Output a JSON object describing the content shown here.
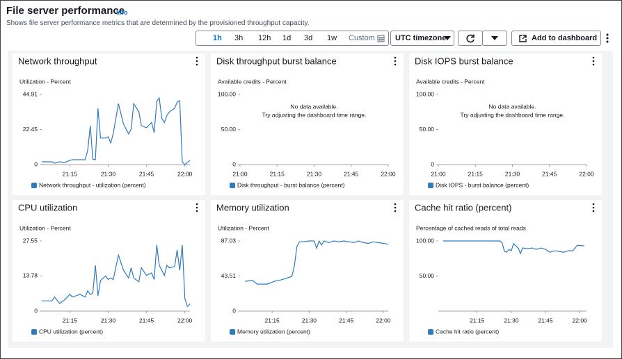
{
  "header": {
    "title": "File server performance",
    "info": "Info",
    "description": "Shows file server performance metrics that are determined by the provisioned throughput capacity."
  },
  "toolbar": {
    "ranges": [
      "1h",
      "3h",
      "12h",
      "1d",
      "3d",
      "1w"
    ],
    "custom": "Custom",
    "timezone": "UTC timezone",
    "add": "Add to dashboard"
  },
  "chart_data": [
    {
      "type": "line",
      "title": "Network throughput",
      "axis_label": "Utilization - Percent",
      "x": [
        "21:04",
        "21:08",
        "21:09",
        "21:11",
        "21:13",
        "21:15",
        "21:16",
        "21:19",
        "21:21",
        "21:22",
        "21:23",
        "21:24",
        "21:25",
        "21:26",
        "21:27",
        "21:29",
        "21:30",
        "21:31",
        "21:32",
        "21:34",
        "21:36",
        "21:38",
        "21:39",
        "21:40",
        "21:42",
        "21:43",
        "21:45",
        "21:47",
        "21:48",
        "21:49",
        "21:50",
        "21:51",
        "21:52",
        "21:53",
        "21:54",
        "21:56",
        "21:57",
        "21:58",
        "21:59",
        "22:00",
        "22:01",
        "22:02"
      ],
      "series": [
        {
          "name": "Network throughput - utilization (percent)",
          "color": "#2f7bbf",
          "values": [
            1.8,
            1.8,
            0.9,
            1.8,
            1.3,
            2.7,
            3.1,
            3.1,
            3.1,
            9.3,
            24.9,
            3.5,
            3.1,
            36,
            17,
            17,
            17.8,
            13.8,
            20,
            39,
            26,
            19.6,
            22.7,
            39,
            33.8,
            24.9,
            23.6,
            27,
            20.5,
            40.5,
            42.6,
            29.4,
            27,
            31.5,
            33.8,
            36,
            40,
            40.9,
            1.8,
            0,
            1.3,
            2.7
          ]
        }
      ],
      "xlim": [
        "21:04",
        "22:02"
      ],
      "xticks": [
        "21:15",
        "21:30",
        "21:45",
        "22:00"
      ],
      "ylim": [
        0,
        44.91
      ],
      "yticks": [
        0,
        22.45,
        44.91
      ]
    },
    {
      "type": "line",
      "title": "Disk throughput burst balance",
      "axis_label": "Available credits - Percent",
      "message": [
        "No data available.",
        "Try adjusting the dashboard time range."
      ],
      "x": [],
      "series": [
        {
          "name": "Disk throughput - burst balance (percent)",
          "color": "#2f7bbf",
          "values": []
        }
      ],
      "xlim": [
        "21:00",
        "22:00"
      ],
      "xticks": [
        "21:00",
        "21:15",
        "21:30",
        "21:45",
        "22:00"
      ],
      "ylim": [
        0,
        100
      ],
      "yticks": [
        0,
        {
          "value": 50,
          "label": "50.00"
        },
        {
          "value": 100,
          "label": "100.00"
        }
      ]
    },
    {
      "type": "line",
      "title": "Disk IOPS burst balance",
      "axis_label": "Available credits - Percent",
      "message": [
        "No data available.",
        "Try adjusting the dashboard time range."
      ],
      "x": [],
      "series": [
        {
          "name": "Disk IOPS - burst balance (percent)",
          "color": "#2f7bbf",
          "values": []
        }
      ],
      "xlim": [
        "21:00",
        "22:00"
      ],
      "xticks": [
        "21:00",
        "21:15",
        "21:30",
        "21:45",
        "22:00"
      ],
      "ylim": [
        0,
        100
      ],
      "yticks": [
        0,
        {
          "value": 50,
          "label": "50.00"
        },
        {
          "value": 100,
          "label": "100.00"
        }
      ]
    },
    {
      "type": "line",
      "title": "CPU utilization",
      "axis_label": "Utilization - Percent",
      "x": [
        "21:04",
        "21:08",
        "21:09",
        "21:11",
        "21:13",
        "21:15",
        "21:16",
        "21:19",
        "21:21",
        "21:22",
        "21:23",
        "21:24",
        "21:25",
        "21:26",
        "21:27",
        "21:29",
        "21:30",
        "21:31",
        "21:32",
        "21:34",
        "21:36",
        "21:38",
        "21:39",
        "21:40",
        "21:42",
        "21:43",
        "21:45",
        "21:47",
        "21:48",
        "21:49",
        "21:50",
        "21:51",
        "21:52",
        "21:53",
        "21:54",
        "21:56",
        "21:57",
        "21:58",
        "21:59",
        "22:00",
        "22:01",
        "22:02"
      ],
      "series": [
        {
          "name": "CPU utilization (percent)",
          "color": "#2f7bbf",
          "values": [
            4,
            4,
            5.5,
            3,
            4.5,
            6.6,
            5.5,
            6.6,
            5.5,
            8,
            6.5,
            7,
            18,
            6,
            12,
            13.8,
            12.4,
            13,
            12.4,
            22,
            16,
            13,
            17,
            13,
            11.5,
            17,
            14,
            15,
            12.4,
            26,
            18,
            16,
            14,
            18,
            17,
            17.5,
            24,
            16,
            26,
            5,
            1.8,
            2.8
          ]
        }
      ],
      "xlim": [
        "21:04",
        "22:02"
      ],
      "xticks": [
        "21:15",
        "21:30",
        "21:45",
        "22:00"
      ],
      "ylim": [
        0,
        27.55
      ],
      "yticks": [
        0,
        13.78,
        27.55
      ]
    },
    {
      "type": "line",
      "title": "Memory utilization",
      "axis_label": "Utilization - Percent",
      "x": [
        "21:04",
        "21:07",
        "21:09",
        "21:13",
        "21:16",
        "21:19",
        "21:23",
        "21:24",
        "21:25",
        "21:26",
        "21:28",
        "21:30",
        "21:32",
        "21:33",
        "21:34",
        "21:35",
        "21:36",
        "21:38",
        "21:40",
        "21:42",
        "21:44",
        "21:46",
        "21:48",
        "21:50",
        "21:52",
        "21:54",
        "21:56",
        "21:58",
        "22:00",
        "22:02"
      ],
      "series": [
        {
          "name": "Memory utilization (percent)",
          "color": "#2f7bbf",
          "values": [
            37,
            38,
            33.5,
            33.5,
            37,
            39,
            43,
            56,
            80,
            86,
            86,
            87,
            87,
            78,
            87,
            82,
            87,
            85,
            87,
            86,
            87,
            86,
            85,
            87,
            85,
            84,
            86,
            85,
            84,
            83
          ]
        }
      ],
      "xlim": [
        "21:02",
        "22:02"
      ],
      "xticks": [
        "21:15",
        "21:30",
        "21:45",
        "22:00"
      ],
      "ylim": [
        0,
        87.03
      ],
      "yticks": [
        0,
        43.51,
        87.03
      ]
    },
    {
      "type": "line",
      "title": "Cache hit ratio (percent)",
      "axis_label": "Percentage of cached reads of total reads",
      "x": [
        "21:00",
        "21:10",
        "21:20",
        "21:25",
        "21:26",
        "21:27",
        "21:28",
        "21:29",
        "21:30",
        "21:31",
        "21:33",
        "21:34",
        "21:35",
        "21:37",
        "21:39",
        "21:41",
        "21:43",
        "21:45",
        "21:47",
        "21:49",
        "21:51",
        "21:53",
        "21:55",
        "21:57",
        "21:59",
        "22:02"
      ],
      "series": [
        {
          "name": "Cache hit ratio (percent)",
          "color": "#2f7bbf",
          "values": [
            100,
            100,
            100,
            100,
            97,
            85,
            84,
            88,
            86,
            96,
            90,
            82,
            90,
            89,
            90,
            88,
            90,
            88,
            84,
            86,
            85,
            84,
            86,
            86,
            94,
            93
          ]
        }
      ],
      "xlim": [
        "20:58",
        "22:03"
      ],
      "xticks": [
        "21:15",
        "21:30",
        "21:45",
        "22:00"
      ],
      "ylim": [
        0,
        100
      ],
      "yticks": [
        {
          "value": 50,
          "label": "50.00"
        },
        {
          "value": 100,
          "label": "100.00"
        }
      ]
    }
  ]
}
